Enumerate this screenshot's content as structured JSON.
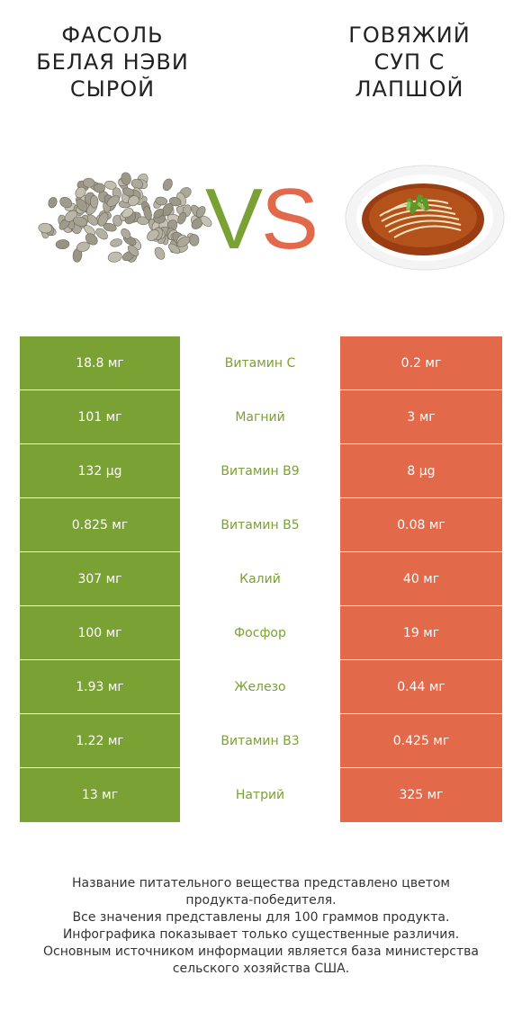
{
  "left_food": {
    "title": "ФАСОЛЬ\nБЕЛАЯ НЭВИ\nСЫРОЙ",
    "image_icon": "white-beans-image"
  },
  "right_food": {
    "title": "ГОВЯЖИЙ\nСУП С\nЛАПШОЙ",
    "image_icon": "beef-noodle-soup-image"
  },
  "vs": {
    "v": "V",
    "s": "S",
    "v_color": "#7aa134",
    "s_color": "#e2694a"
  },
  "colors": {
    "winner_left": "#7aa134",
    "winner_right": "#e2694a"
  },
  "rows": [
    {
      "left": "18.8 мг",
      "nutrient": "Витамин C",
      "right": "0.2 мг"
    },
    {
      "left": "101 мг",
      "nutrient": "Магний",
      "right": "3 мг"
    },
    {
      "left": "132 µg",
      "nutrient": "Витамин B9",
      "right": "8 µg"
    },
    {
      "left": "0.825 мг",
      "nutrient": "Витамин B5",
      "right": "0.08 мг"
    },
    {
      "left": "307 мг",
      "nutrient": "Калий",
      "right": "40 мг"
    },
    {
      "left": "100 мг",
      "nutrient": "Фосфор",
      "right": "19 мг"
    },
    {
      "left": "1.93 мг",
      "nutrient": "Железо",
      "right": "0.44 мг"
    },
    {
      "left": "1.22 мг",
      "nutrient": "Витамин B3",
      "right": "0.425 мг"
    },
    {
      "left": "13 мг",
      "nutrient": "Натрий",
      "right": "325 мг"
    }
  ],
  "footnote": [
    "Название питательного вещества представлено цветом",
    "продукта-победителя.",
    "Все значения представлены для 100 граммов продукта.",
    "Инфографика показывает только существенные различия.",
    "Основным источником информации является база министерства",
    "сельского хозяйства США."
  ]
}
